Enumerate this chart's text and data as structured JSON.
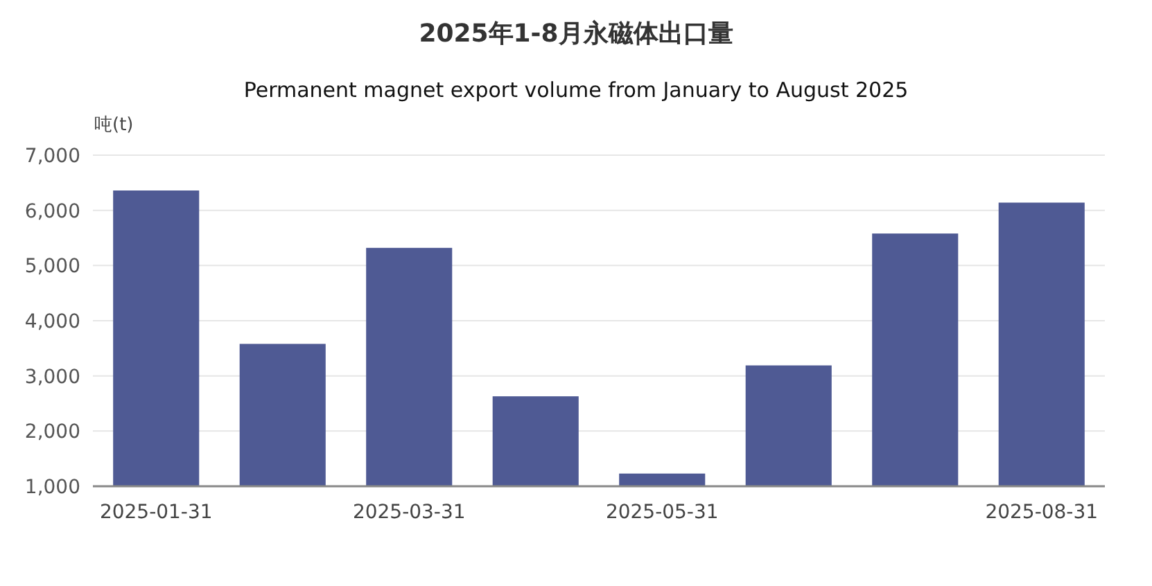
{
  "chart_data": {
    "type": "bar",
    "title": "2025年1-8月永磁体出口量",
    "subtitle": "Permanent magnet export volume from January to August 2025",
    "ylabel": "吨(t)",
    "categories": [
      "2025-01-31",
      null,
      "2025-03-31",
      null,
      "2025-05-31",
      null,
      null,
      "2025-08-31"
    ],
    "values": [
      6360,
      3580,
      5320,
      2630,
      1230,
      3190,
      5580,
      6140
    ],
    "color": "#4f5a94",
    "ylim": [
      1000,
      7000
    ],
    "yticks": [
      {
        "value": 1000,
        "label": "1,000"
      },
      {
        "value": 2000,
        "label": "2,000"
      },
      {
        "value": 3000,
        "label": "3,000"
      },
      {
        "value": 4000,
        "label": "4,000"
      },
      {
        "value": 5000,
        "label": "5,000"
      },
      {
        "value": 6000,
        "label": "6,000"
      },
      {
        "value": 7000,
        "label": "7,000"
      }
    ],
    "grid": "y"
  }
}
